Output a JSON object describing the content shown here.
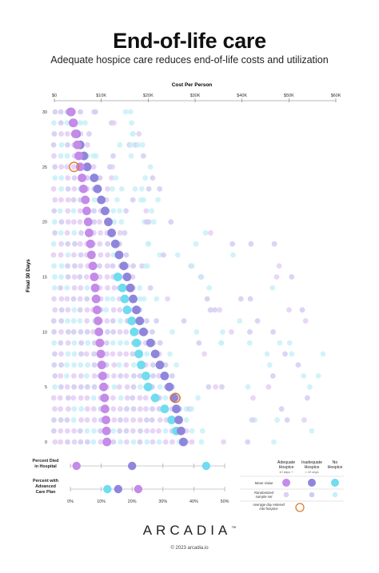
{
  "header": {
    "title": "End-of-life care",
    "subtitle": "Adequate hospice care reduces end-of-life costs and utilization"
  },
  "chart_data": [
    {
      "type": "scatter",
      "xlabel": "Cost Per Person",
      "ylabel": "Final 30 Days",
      "xlim": [
        0,
        60000
      ],
      "ylim": [
        0,
        30
      ],
      "x_ticks": [
        {
          "value": 0,
          "label": "$0"
        },
        {
          "value": 10000,
          "label": "$10K"
        },
        {
          "value": 20000,
          "label": "$20K"
        },
        {
          "value": 30000,
          "label": "$30K"
        },
        {
          "value": 40000,
          "label": "$40K"
        },
        {
          "value": 50000,
          "label": "$50K"
        },
        {
          "value": 60000,
          "label": "$60K"
        }
      ],
      "y_ticks": [
        {
          "value": 0,
          "label": "0"
        },
        {
          "value": 5,
          "label": "5"
        },
        {
          "value": 10,
          "label": "10"
        },
        {
          "value": 15,
          "label": "15"
        },
        {
          "value": 20,
          "label": "20"
        },
        {
          "value": 25,
          "label": "25"
        },
        {
          "value": 30,
          "label": "30"
        }
      ],
      "grid": false,
      "legend_position": "bottom-right",
      "colors": {
        "adequate": "#c48be8",
        "adequate_light": "#e3cdf5",
        "inadequate": "#8f86dc",
        "inadequate_light": "#cfcbf1",
        "no_hospice": "#6fdcef",
        "no_hospice_light": "#c6f0f8",
        "hospice_entry": "#e07a2e"
      },
      "series": [
        {
          "key": "adequate",
          "mean_values": [
            {
              "day": 0,
              "cost": 11200
            },
            {
              "day": 1,
              "cost": 11100
            },
            {
              "day": 2,
              "cost": 11000
            },
            {
              "day": 3,
              "cost": 10800
            },
            {
              "day": 4,
              "cost": 10700
            },
            {
              "day": 5,
              "cost": 10500
            },
            {
              "day": 6,
              "cost": 10300
            },
            {
              "day": 7,
              "cost": 10100
            },
            {
              "day": 8,
              "cost": 9900
            },
            {
              "day": 9,
              "cost": 9700
            },
            {
              "day": 10,
              "cost": 9500
            },
            {
              "day": 11,
              "cost": 9300
            },
            {
              "day": 12,
              "cost": 9100
            },
            {
              "day": 13,
              "cost": 8900
            },
            {
              "day": 14,
              "cost": 8700
            },
            {
              "day": 15,
              "cost": 8500
            },
            {
              "day": 16,
              "cost": 8200
            },
            {
              "day": 17,
              "cost": 7900
            },
            {
              "day": 18,
              "cost": 7700
            },
            {
              "day": 19,
              "cost": 7400
            },
            {
              "day": 20,
              "cost": 7200
            },
            {
              "day": 21,
              "cost": 6900
            },
            {
              "day": 22,
              "cost": 6600
            },
            {
              "day": 23,
              "cost": 6200
            },
            {
              "day": 24,
              "cost": 5900
            },
            {
              "day": 25,
              "cost": 5500
            },
            {
              "day": 26,
              "cost": 5200
            },
            {
              "day": 27,
              "cost": 4900
            },
            {
              "day": 28,
              "cost": 4500
            },
            {
              "day": 29,
              "cost": 4100
            },
            {
              "day": 30,
              "cost": 3600
            }
          ]
        },
        {
          "key": "inadequate",
          "mean_values": [
            {
              "day": 0,
              "cost": 27500
            },
            {
              "day": 1,
              "cost": 27000
            },
            {
              "day": 2,
              "cost": 26500
            },
            {
              "day": 3,
              "cost": 26000
            },
            {
              "day": 4,
              "cost": 25500
            },
            {
              "day": 5,
              "cost": 24500
            },
            {
              "day": 6,
              "cost": 23500
            },
            {
              "day": 7,
              "cost": 22500
            },
            {
              "day": 8,
              "cost": 21500
            },
            {
              "day": 9,
              "cost": 20500
            },
            {
              "day": 10,
              "cost": 19000
            },
            {
              "day": 11,
              "cost": 18200
            },
            {
              "day": 12,
              "cost": 17500
            },
            {
              "day": 13,
              "cost": 16800
            },
            {
              "day": 14,
              "cost": 16200
            },
            {
              "day": 15,
              "cost": 15500
            },
            {
              "day": 16,
              "cost": 14800
            },
            {
              "day": 17,
              "cost": 13800
            },
            {
              "day": 18,
              "cost": 13000
            },
            {
              "day": 19,
              "cost": 12200
            },
            {
              "day": 20,
              "cost": 11500
            },
            {
              "day": 21,
              "cost": 10800
            },
            {
              "day": 22,
              "cost": 10000
            },
            {
              "day": 23,
              "cost": 9200
            },
            {
              "day": 24,
              "cost": 8500
            },
            {
              "day": 25,
              "cost": 7000
            },
            {
              "day": 26,
              "cost": 6300
            },
            {
              "day": 27,
              "cost": 5500
            },
            {
              "day": 28,
              "cost": 4700
            },
            {
              "day": 29,
              "cost": 4000
            },
            {
              "day": 30,
              "cost": 3500
            }
          ]
        },
        {
          "key": "no_hospice",
          "mean_values": [
            {
              "day": 1,
              "cost": 26000
            },
            {
              "day": 2,
              "cost": 25000
            },
            {
              "day": 3,
              "cost": 23500
            },
            {
              "day": 4,
              "cost": 21500
            },
            {
              "day": 5,
              "cost": 20000
            },
            {
              "day": 6,
              "cost": 19500
            },
            {
              "day": 7,
              "cost": 18500
            },
            {
              "day": 8,
              "cost": 18000
            },
            {
              "day": 9,
              "cost": 17500
            },
            {
              "day": 10,
              "cost": 17000
            },
            {
              "day": 11,
              "cost": 16500
            },
            {
              "day": 12,
              "cost": 15500
            },
            {
              "day": 13,
              "cost": 15000
            },
            {
              "day": 14,
              "cost": 14500
            },
            {
              "day": 15,
              "cost": 13500
            }
          ]
        }
      ],
      "hospice_entry_marker": {
        "day": 25,
        "cost": 4200
      },
      "hospice_entry_marker_2": {
        "day": 4,
        "cost": 25800
      },
      "legend": {
        "columns": [
          {
            "label": "Adequate Hospice",
            "sub": "10 days +"
          },
          {
            "label": "Inadequate Hospice",
            "sub": "< 10 days"
          },
          {
            "label": "No Hospice",
            "sub": ""
          }
        ],
        "rows": [
          {
            "label": "Mean Value"
          },
          {
            "label": "Randomized sample set"
          },
          {
            "label": "Average day entered into hospice"
          }
        ]
      }
    },
    {
      "type": "scatter",
      "xlim": [
        0,
        50
      ],
      "x_ticks": [
        {
          "value": 0,
          "label": "0%"
        },
        {
          "value": 10,
          "label": "10%"
        },
        {
          "value": 20,
          "label": "20%"
        },
        {
          "value": 30,
          "label": "30%"
        },
        {
          "value": 40,
          "label": "40%"
        },
        {
          "value": 50,
          "label": "50%"
        }
      ],
      "rows": [
        {
          "label": "Percent Died in Hospital",
          "values": {
            "adequate": 2,
            "inadequate": 20,
            "no_hospice": 44
          }
        },
        {
          "label": "Percent with Advanced Care Plan",
          "values": {
            "adequate": 22,
            "inadequate": 15.5,
            "no_hospice": 12
          }
        }
      ]
    }
  ],
  "footer": {
    "brand": "ARCADIA",
    "trademark": "™",
    "copyright": "© 2023 arcadia.io"
  }
}
